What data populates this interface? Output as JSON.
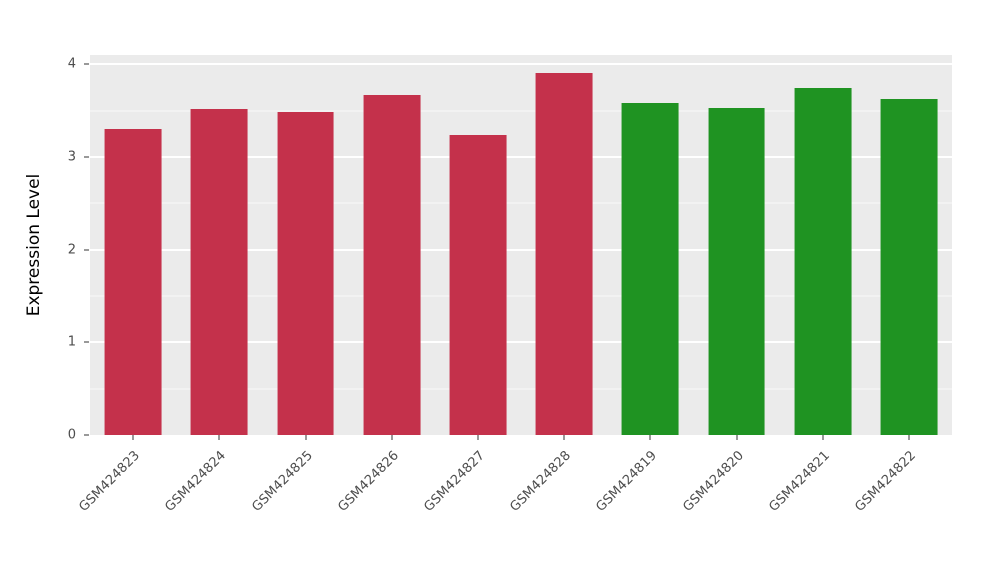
{
  "chart_data": {
    "type": "bar",
    "title": "",
    "xlabel": "",
    "ylabel": "Expression Level",
    "categories": [
      "GSM424823",
      "GSM424824",
      "GSM424825",
      "GSM424826",
      "GSM424827",
      "GSM424828",
      "GSM424819",
      "GSM424820",
      "GSM424821",
      "GSM424822"
    ],
    "values": [
      3.3,
      3.52,
      3.49,
      3.67,
      3.24,
      3.91,
      3.58,
      3.53,
      3.74,
      3.63
    ],
    "bar_colors": [
      "#C4314B",
      "#C4314B",
      "#C4314B",
      "#C4314B",
      "#C4314B",
      "#C4314B",
      "#1F9322",
      "#1F9322",
      "#1F9322",
      "#1F9322"
    ],
    "groups": [
      {
        "name": "red-group",
        "color": "#C4314B",
        "samples": [
          "GSM424823",
          "GSM424824",
          "GSM424825",
          "GSM424826",
          "GSM424827",
          "GSM424828"
        ]
      },
      {
        "name": "green-group",
        "color": "#1F9322",
        "samples": [
          "GSM424819",
          "GSM424820",
          "GSM424821",
          "GSM424822"
        ]
      }
    ],
    "ylim": [
      0,
      4.1
    ],
    "yticks": [
      0,
      1,
      2,
      3,
      4
    ],
    "minor_step": 0.5,
    "grid": "on",
    "legend": "none",
    "panel_bg": "#EBEBEB",
    "grid_color": "#FFFFFF"
  }
}
